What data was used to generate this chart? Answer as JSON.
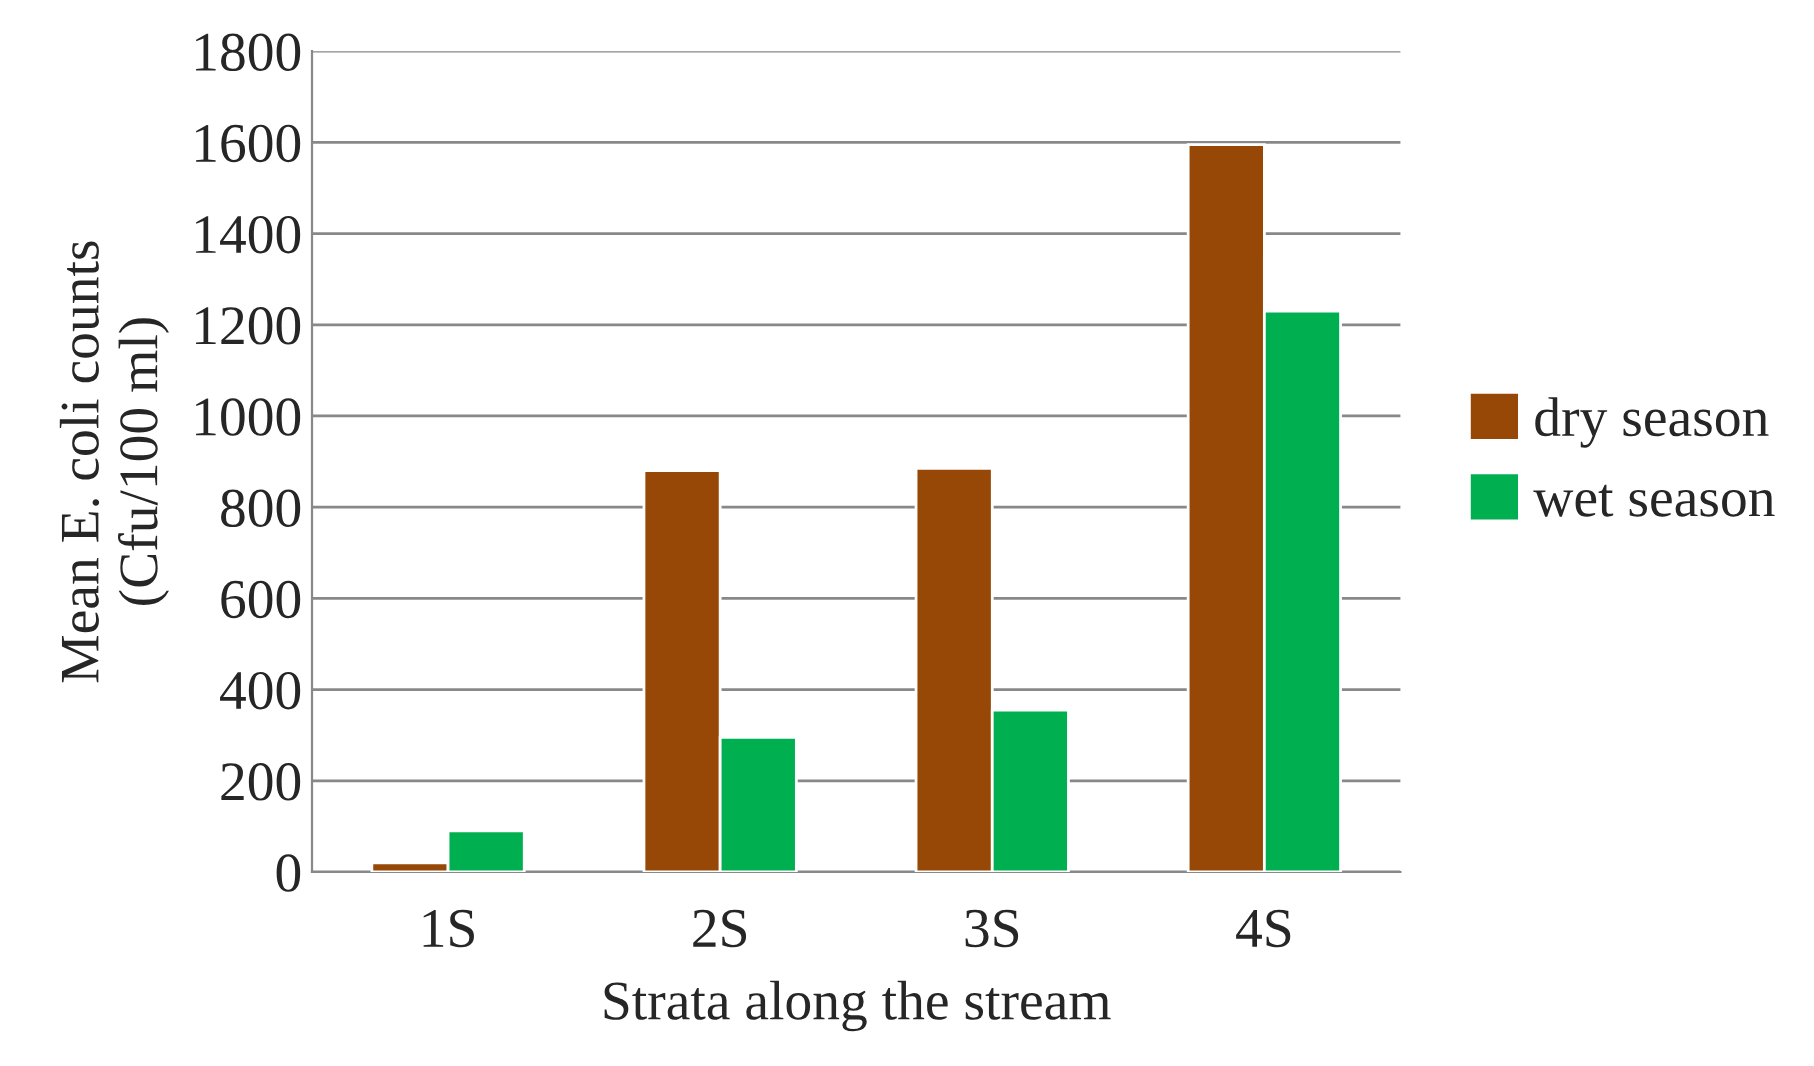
{
  "chart_data": {
    "type": "bar",
    "xlabel": "Strata along the stream",
    "ylabel": "Mean E. coli counts\n(Cfu/100 ml)",
    "categories": [
      "1S",
      "2S",
      "3S",
      "4S"
    ],
    "series": [
      {
        "name": "dry season",
        "color": "#974706",
        "values": [
          20,
          880,
          885,
          1595
        ]
      },
      {
        "name": "wet season",
        "color": "#00b050",
        "values": [
          90,
          295,
          355,
          1230
        ]
      }
    ],
    "ylim": [
      0,
      1800
    ],
    "yticks": [
      0,
      200,
      400,
      600,
      800,
      1000,
      1200,
      1400,
      1600,
      1800
    ],
    "grid": "y",
    "legend": "right"
  }
}
